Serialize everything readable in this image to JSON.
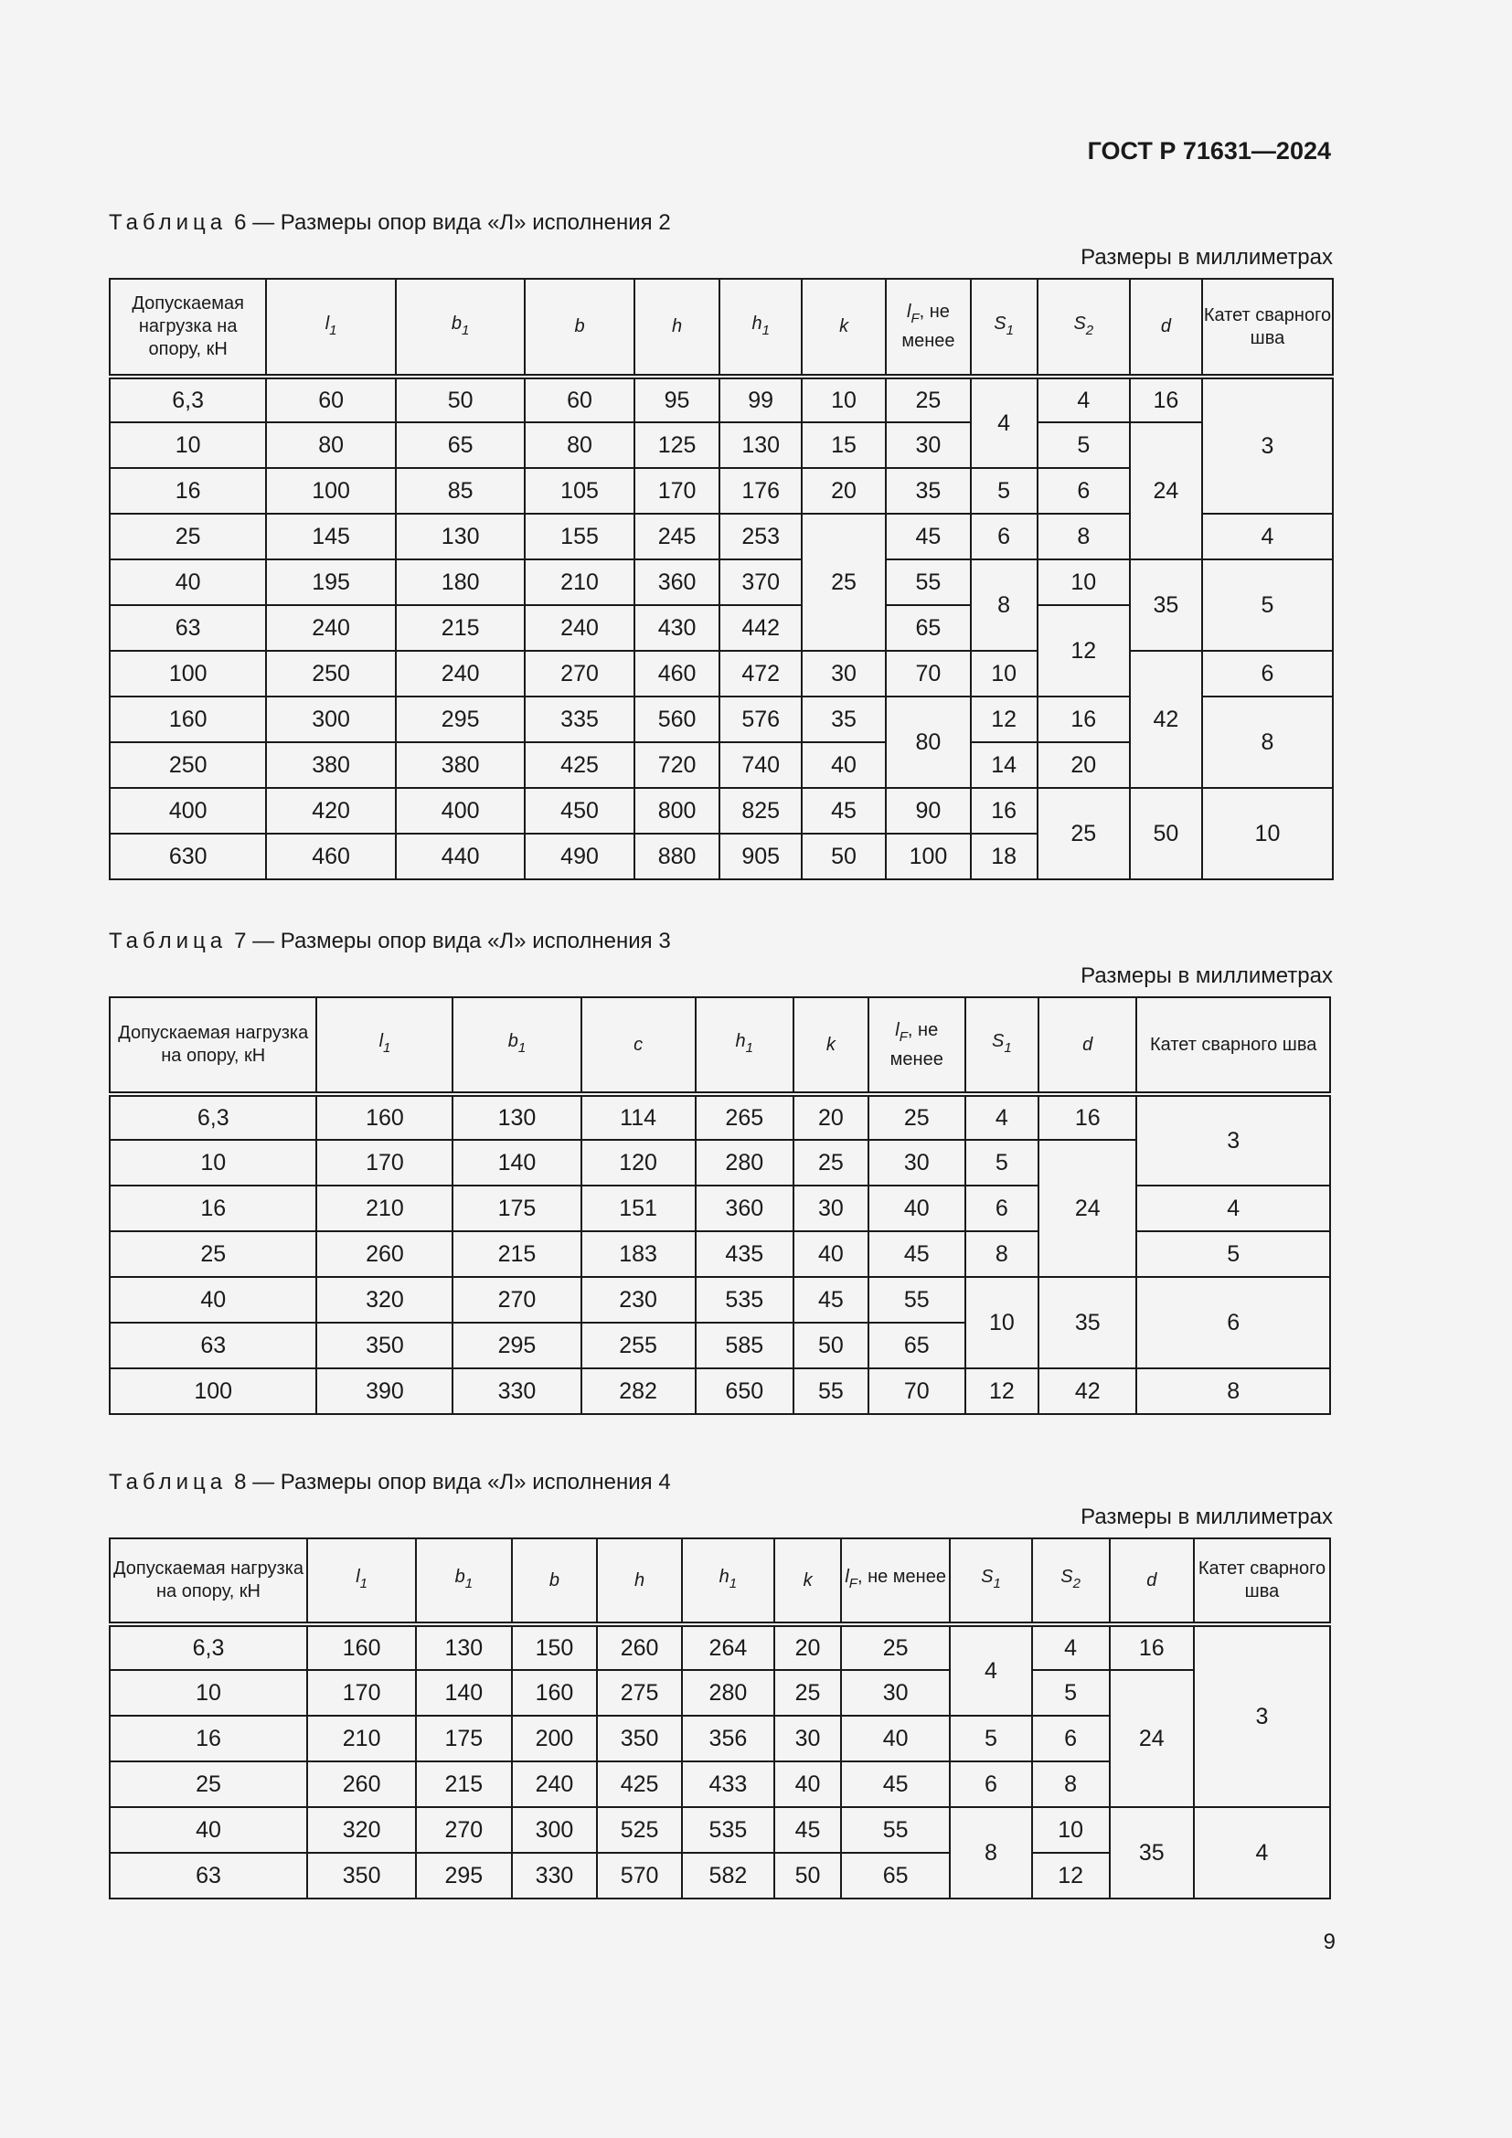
{
  "header": {
    "doc_code": "ГОСТ Р 71631—2024"
  },
  "tables": [
    {
      "caption_label": "Таблица",
      "caption_text": "6 — Размеры опор вида «Л» исполнения 2",
      "units": "Размеры в миллиметрах",
      "columns": [
        {
          "text": "Допускаемая нагрузка на опору, кН"
        },
        {
          "sym": "l",
          "sub": "1"
        },
        {
          "sym": "b",
          "sub": "1"
        },
        {
          "sym": "b"
        },
        {
          "sym": "h"
        },
        {
          "sym": "h",
          "sub": "1"
        },
        {
          "sym": "k"
        },
        {
          "sym": "l",
          "sub": "F",
          "suffix": ", не менее"
        },
        {
          "sym": "S",
          "sub": "1"
        },
        {
          "sym": "S",
          "sub": "2"
        },
        {
          "sym": "d"
        },
        {
          "text": "Катет сварного шва"
        }
      ],
      "rows": [
        [
          "6,3",
          "60",
          "50",
          "60",
          "95",
          "99",
          "10",
          "25",
          {
            "v": "4",
            "rs": 2
          },
          "4",
          "16",
          {
            "v": "3",
            "rs": 3
          }
        ],
        [
          "10",
          "80",
          "65",
          "80",
          "125",
          "130",
          "15",
          "30",
          "5",
          {
            "v": "24",
            "rs": 3
          }
        ],
        [
          "16",
          "100",
          "85",
          "105",
          "170",
          "176",
          "20",
          "35",
          "5",
          "6"
        ],
        [
          "25",
          "145",
          "130",
          "155",
          "245",
          "253",
          {
            "v": "25",
            "rs": 3
          },
          "45",
          "6",
          "8",
          "4"
        ],
        [
          "40",
          "195",
          "180",
          "210",
          "360",
          "370",
          "55",
          {
            "v": "8",
            "rs": 2
          },
          "10",
          {
            "v": "35",
            "rs": 2
          },
          {
            "v": "5",
            "rs": 2
          }
        ],
        [
          "63",
          "240",
          "215",
          "240",
          "430",
          "442",
          "65",
          {
            "v": "12",
            "rs": 2
          }
        ],
        [
          "100",
          "250",
          "240",
          "270",
          "460",
          "472",
          "30",
          "70",
          "10",
          {
            "v": "42",
            "rs": 3
          },
          "6"
        ],
        [
          "160",
          "300",
          "295",
          "335",
          "560",
          "576",
          "35",
          {
            "v": "80",
            "rs": 2
          },
          "12",
          "16",
          {
            "v": "8",
            "rs": 2
          }
        ],
        [
          "250",
          "380",
          "380",
          "425",
          "720",
          "740",
          "40",
          "14",
          "20"
        ],
        [
          "400",
          "420",
          "400",
          "450",
          "800",
          "825",
          "45",
          "90",
          "16",
          {
            "v": "25",
            "rs": 2
          },
          {
            "v": "50",
            "rs": 2
          },
          {
            "v": "10",
            "rs": 2
          }
        ],
        [
          "630",
          "460",
          "440",
          "490",
          "880",
          "905",
          "50",
          "100",
          "18"
        ]
      ]
    },
    {
      "caption_label": "Таблица",
      "caption_text": "7 — Размеры опор вида «Л» исполнения 3",
      "units": "Размеры в миллиметрах",
      "columns": [
        {
          "text": "Допускаемая нагрузка на опору, кН"
        },
        {
          "sym": "l",
          "sub": "1"
        },
        {
          "sym": "b",
          "sub": "1"
        },
        {
          "sym": "c"
        },
        {
          "sym": "h",
          "sub": "1"
        },
        {
          "sym": "k"
        },
        {
          "sym": "l",
          "sub": "F",
          "suffix": ", не менее"
        },
        {
          "sym": "S",
          "sub": "1"
        },
        {
          "sym": "d"
        },
        {
          "text": "Катет сварного шва"
        }
      ],
      "rows": [
        [
          "6,3",
          "160",
          "130",
          "114",
          "265",
          "20",
          "25",
          "4",
          "16",
          {
            "v": "3",
            "rs": 2
          }
        ],
        [
          "10",
          "170",
          "140",
          "120",
          "280",
          "25",
          "30",
          "5",
          {
            "v": "24",
            "rs": 3
          }
        ],
        [
          "16",
          "210",
          "175",
          "151",
          "360",
          "30",
          "40",
          "6",
          "4"
        ],
        [
          "25",
          "260",
          "215",
          "183",
          "435",
          "40",
          "45",
          "8",
          "5"
        ],
        [
          "40",
          "320",
          "270",
          "230",
          "535",
          "45",
          "55",
          {
            "v": "10",
            "rs": 2
          },
          {
            "v": "35",
            "rs": 2
          },
          {
            "v": "6",
            "rs": 2
          }
        ],
        [
          "63",
          "350",
          "295",
          "255",
          "585",
          "50",
          "65"
        ],
        [
          "100",
          "390",
          "330",
          "282",
          "650",
          "55",
          "70",
          "12",
          "42",
          "8"
        ]
      ]
    },
    {
      "caption_label": "Таблица",
      "caption_text": "8 — Размеры опор вида «Л» исполнения 4",
      "units": "Размеры в миллиметрах",
      "columns": [
        {
          "text": "Допускаемая нагрузка на опору, кН"
        },
        {
          "sym": "l",
          "sub": "1"
        },
        {
          "sym": "b",
          "sub": "1"
        },
        {
          "sym": "b"
        },
        {
          "sym": "h"
        },
        {
          "sym": "h",
          "sub": "1"
        },
        {
          "sym": "k"
        },
        {
          "sym": "l",
          "sub": "F",
          "suffix": ", не менее"
        },
        {
          "sym": "S",
          "sub": "1"
        },
        {
          "sym": "S",
          "sub": "2"
        },
        {
          "sym": "d"
        },
        {
          "text": "Катет сварного шва"
        }
      ],
      "rows": [
        [
          "6,3",
          "160",
          "130",
          "150",
          "260",
          "264",
          "20",
          "25",
          {
            "v": "4",
            "rs": 2
          },
          "4",
          "16",
          {
            "v": "3",
            "rs": 4
          }
        ],
        [
          "10",
          "170",
          "140",
          "160",
          "275",
          "280",
          "25",
          "30",
          "5",
          {
            "v": "24",
            "rs": 3
          }
        ],
        [
          "16",
          "210",
          "175",
          "200",
          "350",
          "356",
          "30",
          "40",
          "5",
          "6"
        ],
        [
          "25",
          "260",
          "215",
          "240",
          "425",
          "433",
          "40",
          "45",
          "6",
          "8"
        ],
        [
          "40",
          "320",
          "270",
          "300",
          "525",
          "535",
          "45",
          "55",
          {
            "v": "8",
            "rs": 2
          },
          "10",
          {
            "v": "35",
            "rs": 2
          },
          {
            "v": "4",
            "rs": 2
          }
        ],
        [
          "63",
          "350",
          "295",
          "330",
          "570",
          "582",
          "50",
          "65",
          "12"
        ]
      ]
    }
  ],
  "footer": {
    "page_number": "9"
  }
}
